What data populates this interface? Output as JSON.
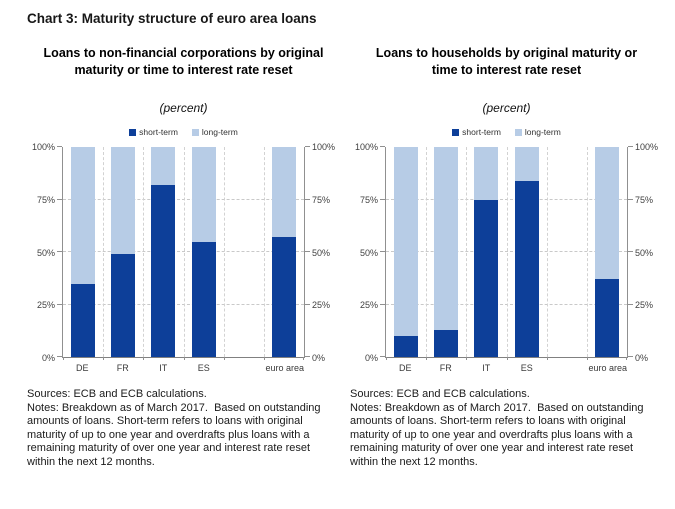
{
  "page": {
    "title": "Chart 3: Maturity structure of euro area loans"
  },
  "chart_data": [
    {
      "type": "bar",
      "stacked": true,
      "title": "Loans to non-financial corporations by original maturity or time to interest rate reset",
      "subtitle": "(percent)",
      "categories": [
        "DE",
        "FR",
        "IT",
        "ES",
        "",
        "euro area"
      ],
      "series": [
        {
          "name": "short-term",
          "color": "#0d3f99",
          "values": [
            35,
            49,
            82,
            55,
            null,
            57
          ]
        },
        {
          "name": "long-term",
          "color": "#b7cce6",
          "values": [
            65,
            51,
            18,
            45,
            null,
            43
          ]
        }
      ],
      "ylim": [
        0,
        100
      ],
      "ytick_values": [
        0,
        25,
        50,
        75,
        100
      ],
      "yticks": [
        "0%",
        "25%",
        "50%",
        "75%",
        "100%"
      ],
      "grid": "dashed",
      "legend_position": "top",
      "xlabel": "",
      "ylabel": "",
      "footnote": "Sources: ECB and ECB calculations.\nNotes: Breakdown as of March 2017.  Based on outstanding amounts of loans. Short-term refers to loans with original maturity of up to one year and overdrafts plus loans with a remaining maturity of over one year and interest rate reset within the next 12 months."
    },
    {
      "type": "bar",
      "stacked": true,
      "title": "Loans to households by original maturity or time to interest rate reset",
      "subtitle": "(percent)",
      "categories": [
        "DE",
        "FR",
        "IT",
        "ES",
        "",
        "euro area"
      ],
      "series": [
        {
          "name": "short-term",
          "color": "#0d3f99",
          "values": [
            10,
            13,
            75,
            84,
            null,
            37
          ]
        },
        {
          "name": "long-term",
          "color": "#b7cce6",
          "values": [
            90,
            87,
            25,
            16,
            null,
            63
          ]
        }
      ],
      "ylim": [
        0,
        100
      ],
      "ytick_values": [
        0,
        25,
        50,
        75,
        100
      ],
      "yticks": [
        "0%",
        "25%",
        "50%",
        "75%",
        "100%"
      ],
      "grid": "dashed",
      "legend_position": "top",
      "xlabel": "",
      "ylabel": "",
      "footnote": "Sources: ECB and ECB calculations.\nNotes: Breakdown as of March 2017.  Based on outstanding amounts of loans. Short-term refers to loans with original maturity of up to one year and overdrafts plus loans with a remaining maturity of over one year and interest rate reset within the next 12 months."
    }
  ]
}
